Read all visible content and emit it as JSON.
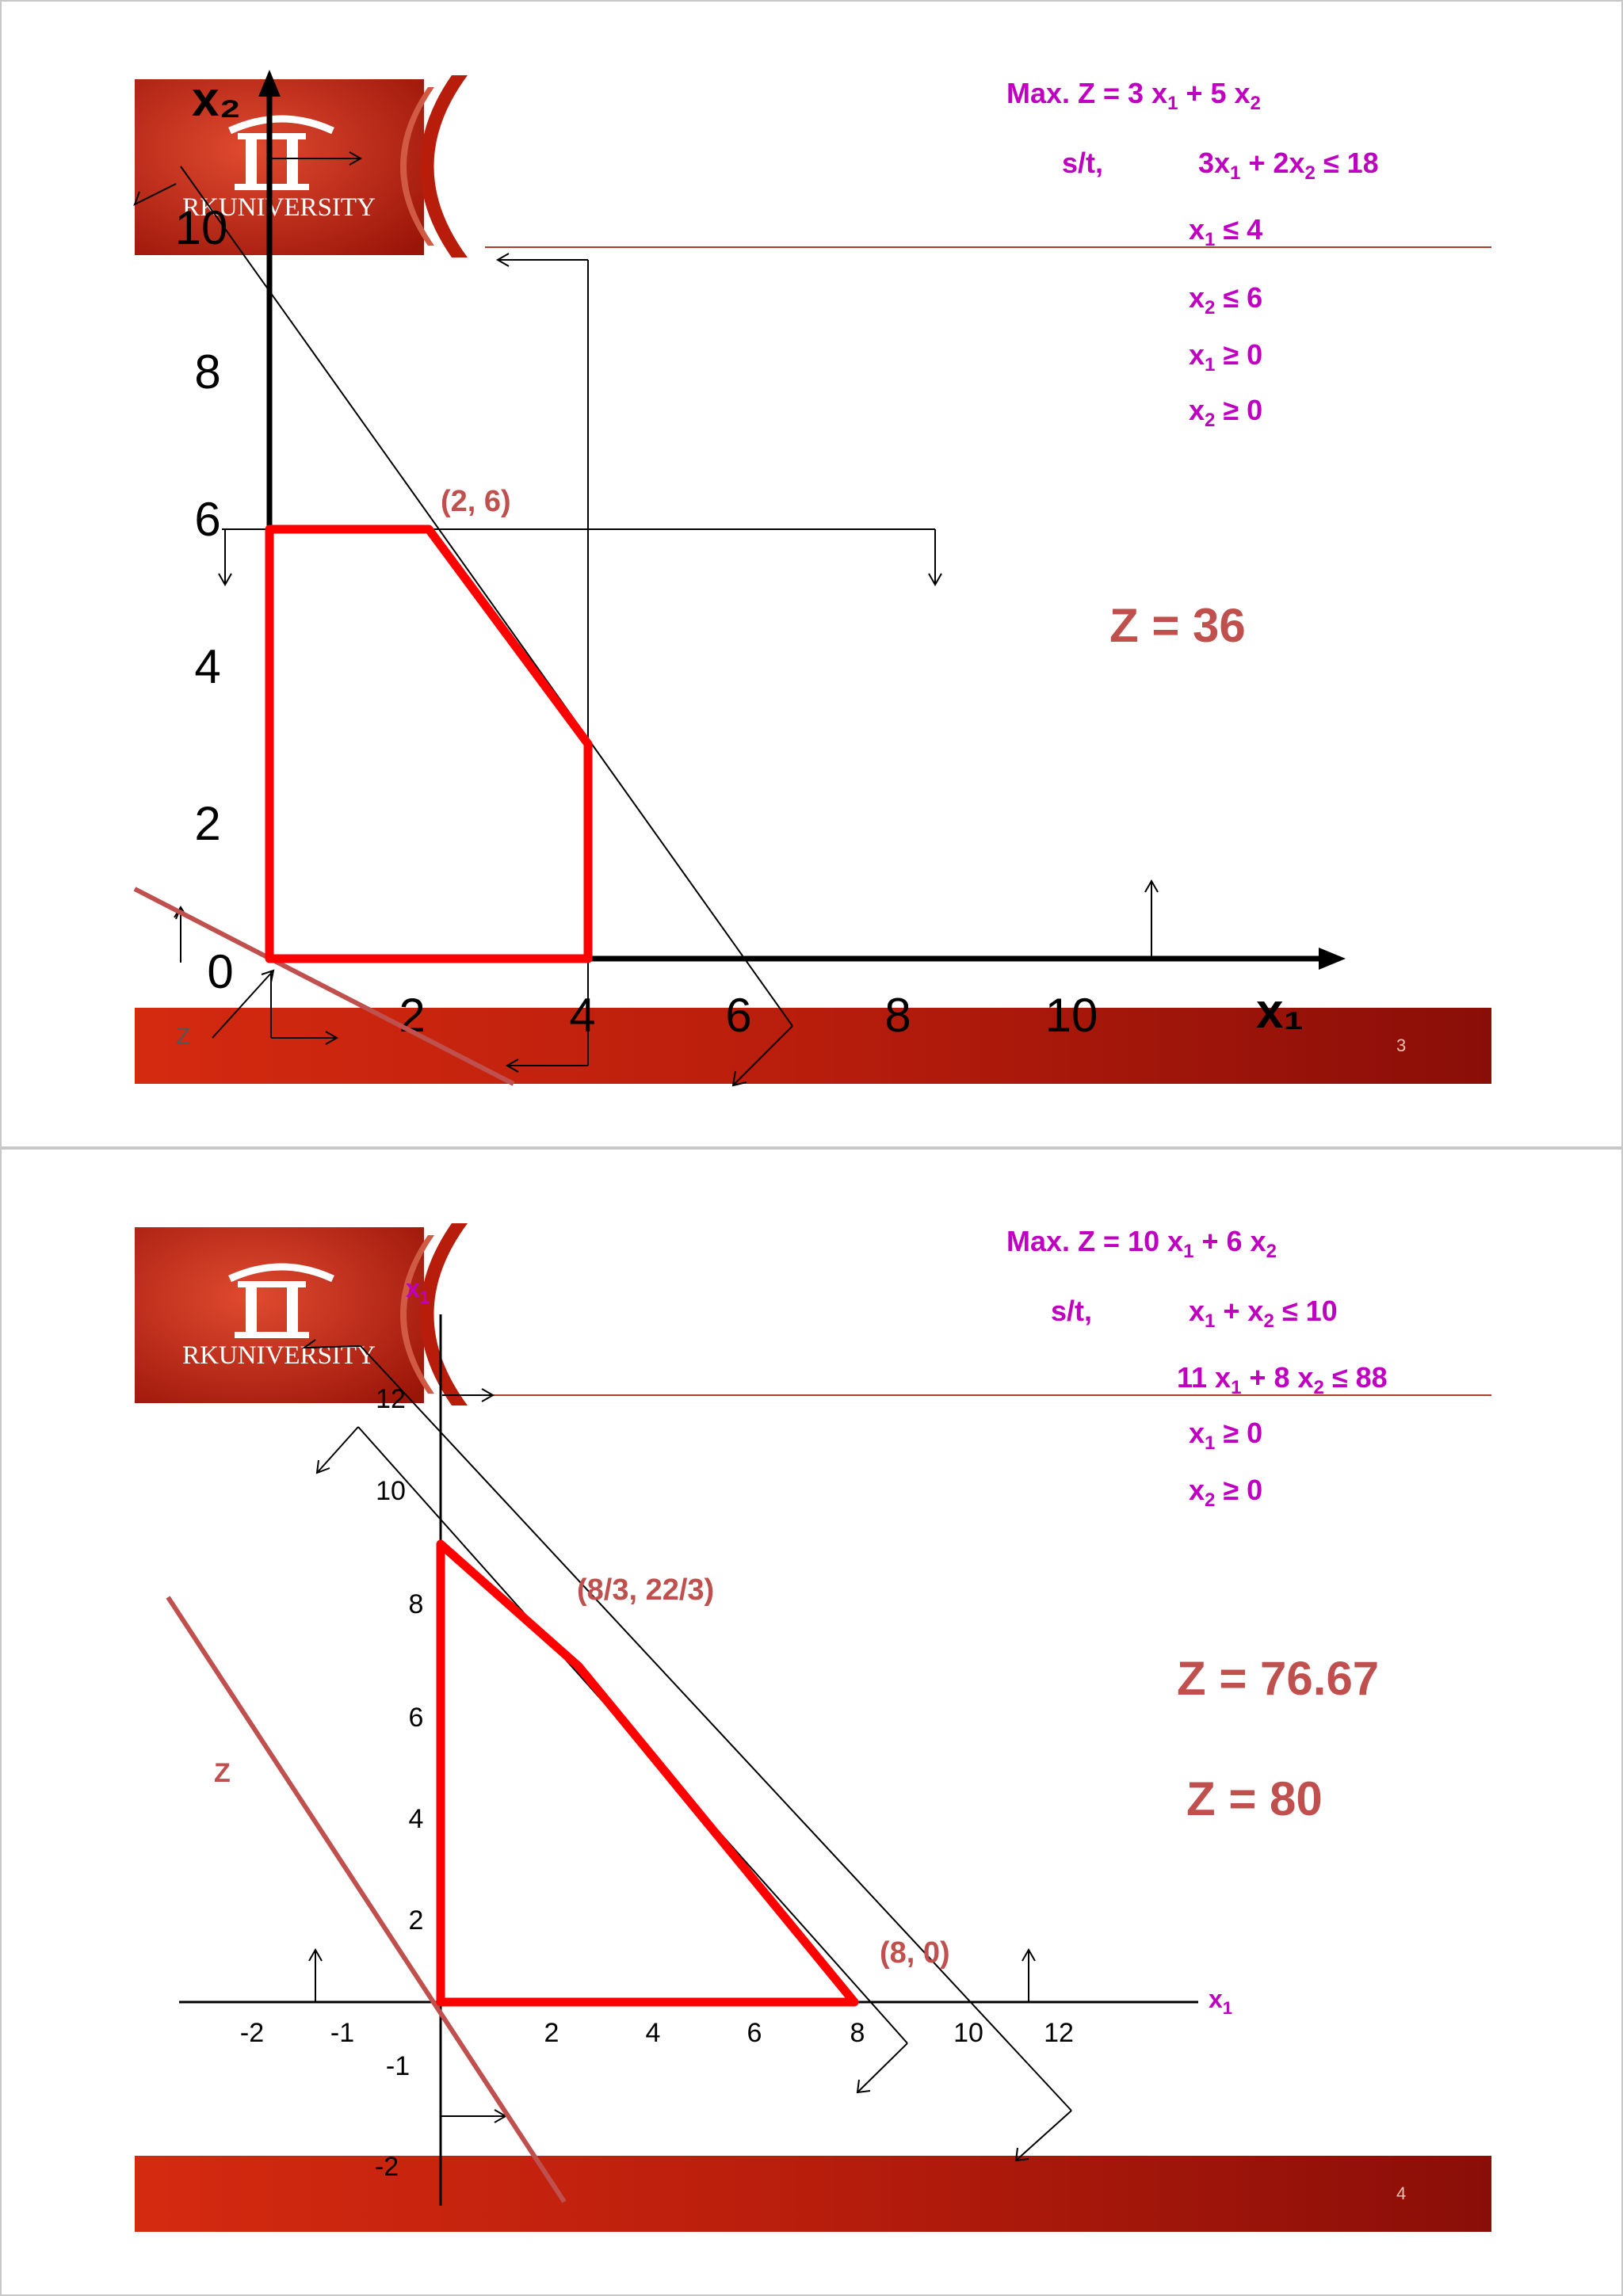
{
  "slides": [
    {
      "logo_text": "RKUNIVERSITY",
      "page_number": "3",
      "objective": "Max. Z = 3 x₁ + 5 x₂",
      "st_label": "s/t,",
      "constraints": [
        "3x₁ + 2x₂ ≤ 18",
        "x₁ ≤ 4",
        "x₂ ≤ 6",
        "x₁ ≥ 0",
        "x₂ ≥ 0"
      ],
      "x_axis_label": "x₁",
      "y_axis_label": "x₂",
      "x_ticks": [
        "2",
        "4",
        "6",
        "8",
        "10"
      ],
      "y_ticks": [
        "0",
        "2",
        "4",
        "6",
        "8",
        "10"
      ],
      "point_label": "(2, 6)",
      "result": "Z = 36",
      "objective_line_label": "Z",
      "feasible_region": [
        [
          0,
          0
        ],
        [
          0,
          6
        ],
        [
          2,
          6
        ],
        [
          4,
          3
        ],
        [
          4,
          0
        ]
      ],
      "colors": {
        "region": "#ff0000",
        "z_line": "#c0504d",
        "lp_text": "#c000c0",
        "banner": "#b01e10"
      }
    },
    {
      "logo_text": "RKUNIVERSITY",
      "page_number": "4",
      "objective": "Max. Z = 10 x₁ + 6 x₂",
      "st_label": "s/t,",
      "constraints": [
        "x₁ + x₂ ≤ 10",
        "11 x₁ + 8 x₂ ≤ 88",
        "x₁ ≥ 0",
        "x₂ ≥ 0"
      ],
      "x_axis_label": "x₁",
      "y_axis_label": "x₁",
      "x_ticks": [
        "-2",
        "-1",
        "2",
        "4",
        "6",
        "8",
        "10",
        "12"
      ],
      "y_ticks": [
        "12",
        "10",
        "8",
        "6",
        "4",
        "2",
        "-1",
        "-2"
      ],
      "point_labels": [
        "(8/3, 22/3)",
        "(8, 0)"
      ],
      "results": [
        "Z = 76.67",
        "Z = 80"
      ],
      "objective_line_label": "Z",
      "feasible_region": [
        [
          0,
          0
        ],
        [
          0,
          10
        ],
        [
          2.67,
          7.33
        ],
        [
          8,
          0
        ]
      ],
      "colors": {
        "region": "#ff0000",
        "z_line": "#c0504d",
        "lp_text": "#c000c0",
        "banner": "#b01e10"
      }
    }
  ]
}
